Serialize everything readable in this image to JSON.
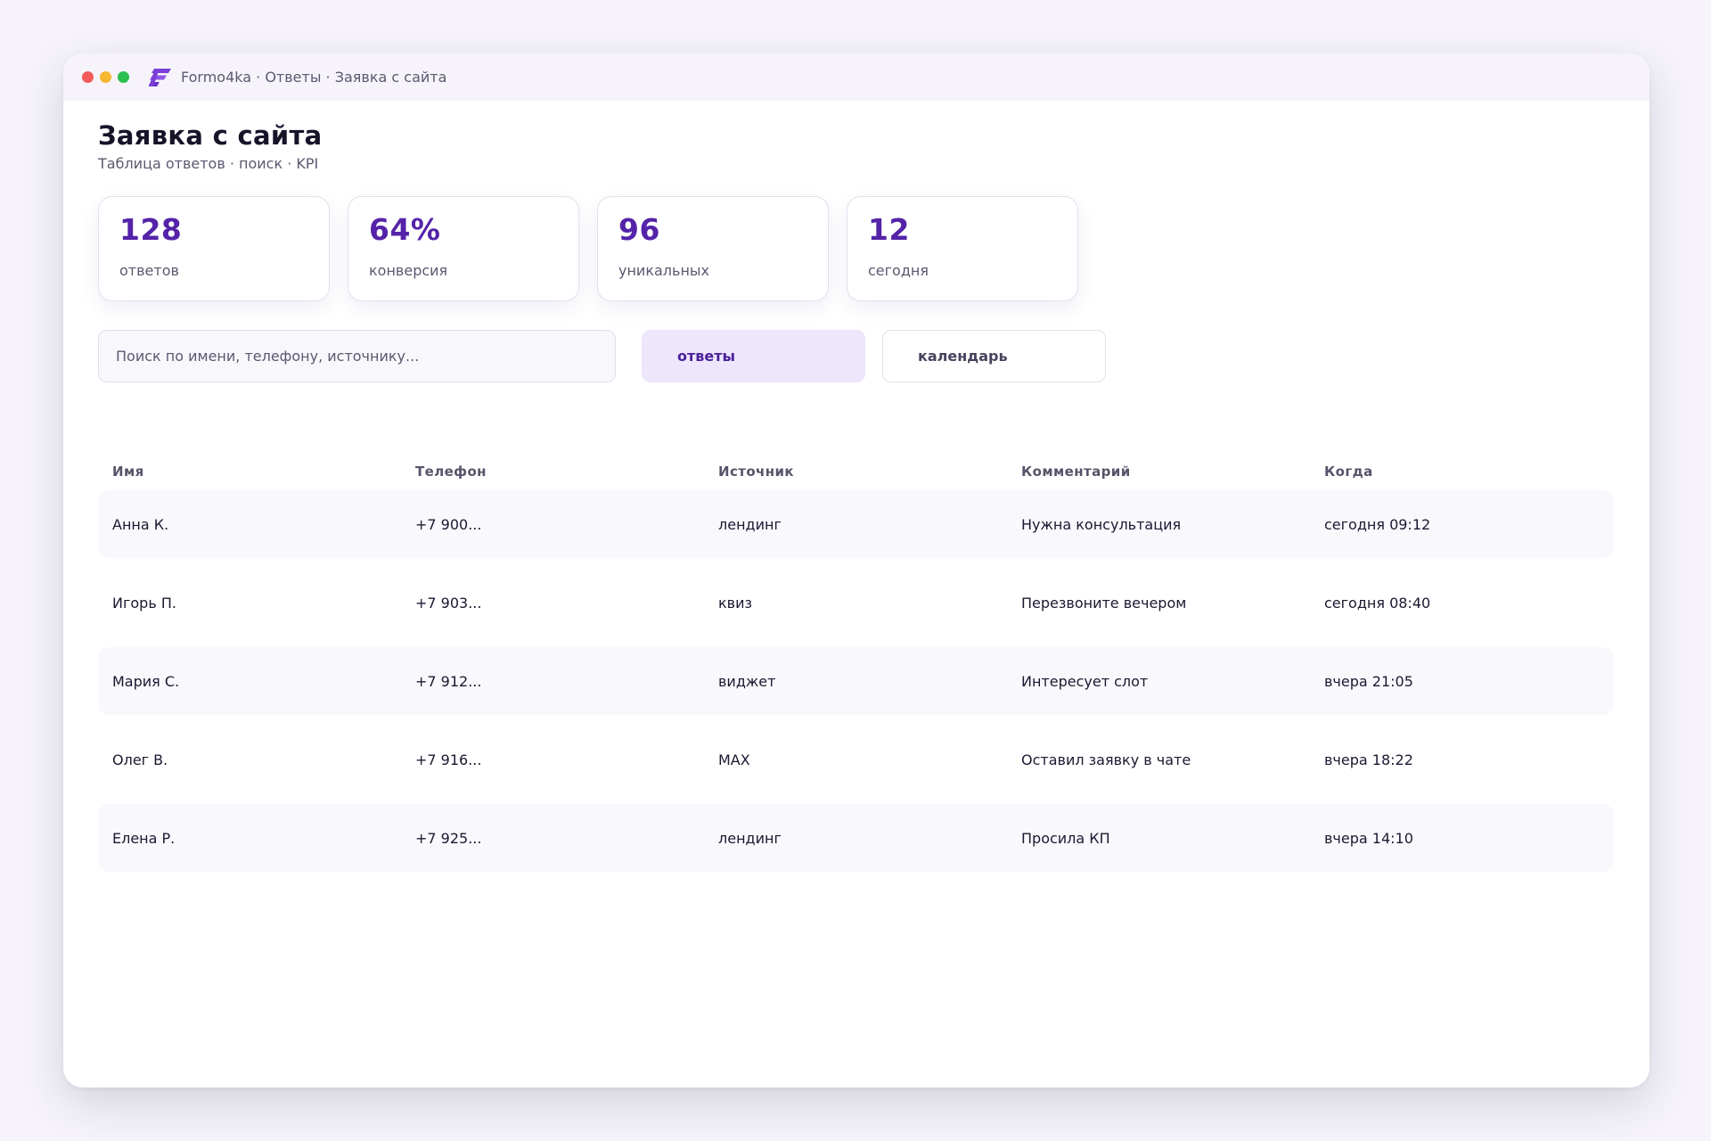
{
  "window": {
    "controls": [
      {
        "name": "close",
        "color": "#f25b57"
      },
      {
        "name": "minimize",
        "color": "#f7b731"
      },
      {
        "name": "maximize",
        "color": "#2bbf4f"
      }
    ],
    "logo_icon": "formo4ka-logo-icon",
    "title": "Formo4ka · Ответы · Заявка с сайта"
  },
  "page": {
    "title": "Заявка с сайта",
    "subtitle": "Таблица ответов · поиск · KPI"
  },
  "kpis": [
    {
      "value": "128",
      "label": "ответов"
    },
    {
      "value": "64%",
      "label": "конверсия"
    },
    {
      "value": "96",
      "label": "уникальных"
    },
    {
      "value": "12",
      "label": "сегодня"
    }
  ],
  "search": {
    "placeholder": "Поиск по имени, телефону, источнику...",
    "value": ""
  },
  "tabs": [
    {
      "label": "ответы",
      "active": true
    },
    {
      "label": "календарь",
      "active": false
    }
  ],
  "table": {
    "columns": [
      "Имя",
      "Телефон",
      "Источник",
      "Комментарий",
      "Когда"
    ],
    "rows": [
      [
        "Анна К.",
        "+7 900...",
        "лендинг",
        "Нужна консультация",
        "сегодня 09:12"
      ],
      [
        "Игорь П.",
        "+7 903...",
        "квиз",
        "Перезвоните вечером",
        "сегодня 08:40"
      ],
      [
        "Мария С.",
        "+7 912...",
        "виджет",
        "Интересует слот",
        "вчера 21:05"
      ],
      [
        "Олег В.",
        "+7 916...",
        "MAX",
        "Оставил заявку в чате",
        "вчера 18:22"
      ],
      [
        "Елена Р.",
        "+7 925...",
        "лендинг",
        "Просила КП",
        "вчера 14:10"
      ]
    ]
  },
  "colors": {
    "accent": "#5423a8",
    "tab_active_bg": "#ede6fc",
    "row_alt_bg": "#f9f8fd"
  }
}
